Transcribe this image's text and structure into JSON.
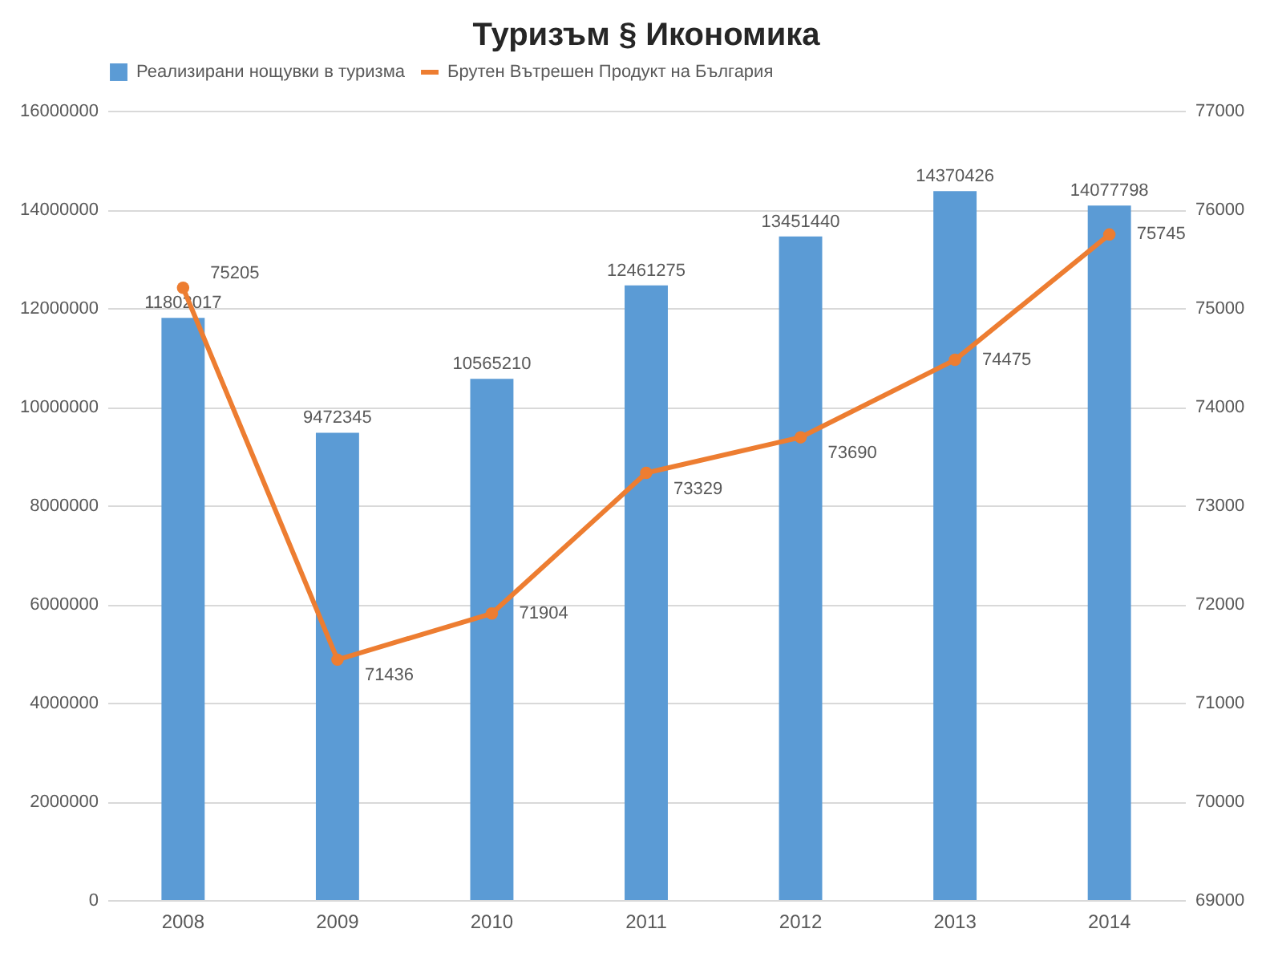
{
  "chart_data": {
    "type": "bar",
    "title": "Туризъм § Икономика",
    "categories": [
      "2008",
      "2009",
      "2010",
      "2011",
      "2012",
      "2013",
      "2014"
    ],
    "series": [
      {
        "name": "Реализирани нощувки в туризма",
        "color": "#5b9bd5",
        "values": [
          11802017,
          9472345,
          10565210,
          12461275,
          13451440,
          14370426,
          14077798
        ]
      },
      {
        "name": "Брутен Вътрешен Продукт на България",
        "type": "line",
        "axis": "y2",
        "color": "#ed7d31",
        "values": [
          75205,
          71436,
          71904,
          73329,
          73690,
          74475,
          75745
        ]
      }
    ],
    "ylim": [
      0,
      16000000
    ],
    "yticks": [
      0,
      2000000,
      4000000,
      6000000,
      8000000,
      10000000,
      12000000,
      14000000,
      16000000
    ],
    "y2lim": [
      69000,
      77000
    ],
    "y2ticks": [
      69000,
      70000,
      71000,
      72000,
      73000,
      74000,
      75000,
      76000,
      77000
    ],
    "grid": "y",
    "legend": "top",
    "marker": "circle",
    "data_labels": true
  }
}
